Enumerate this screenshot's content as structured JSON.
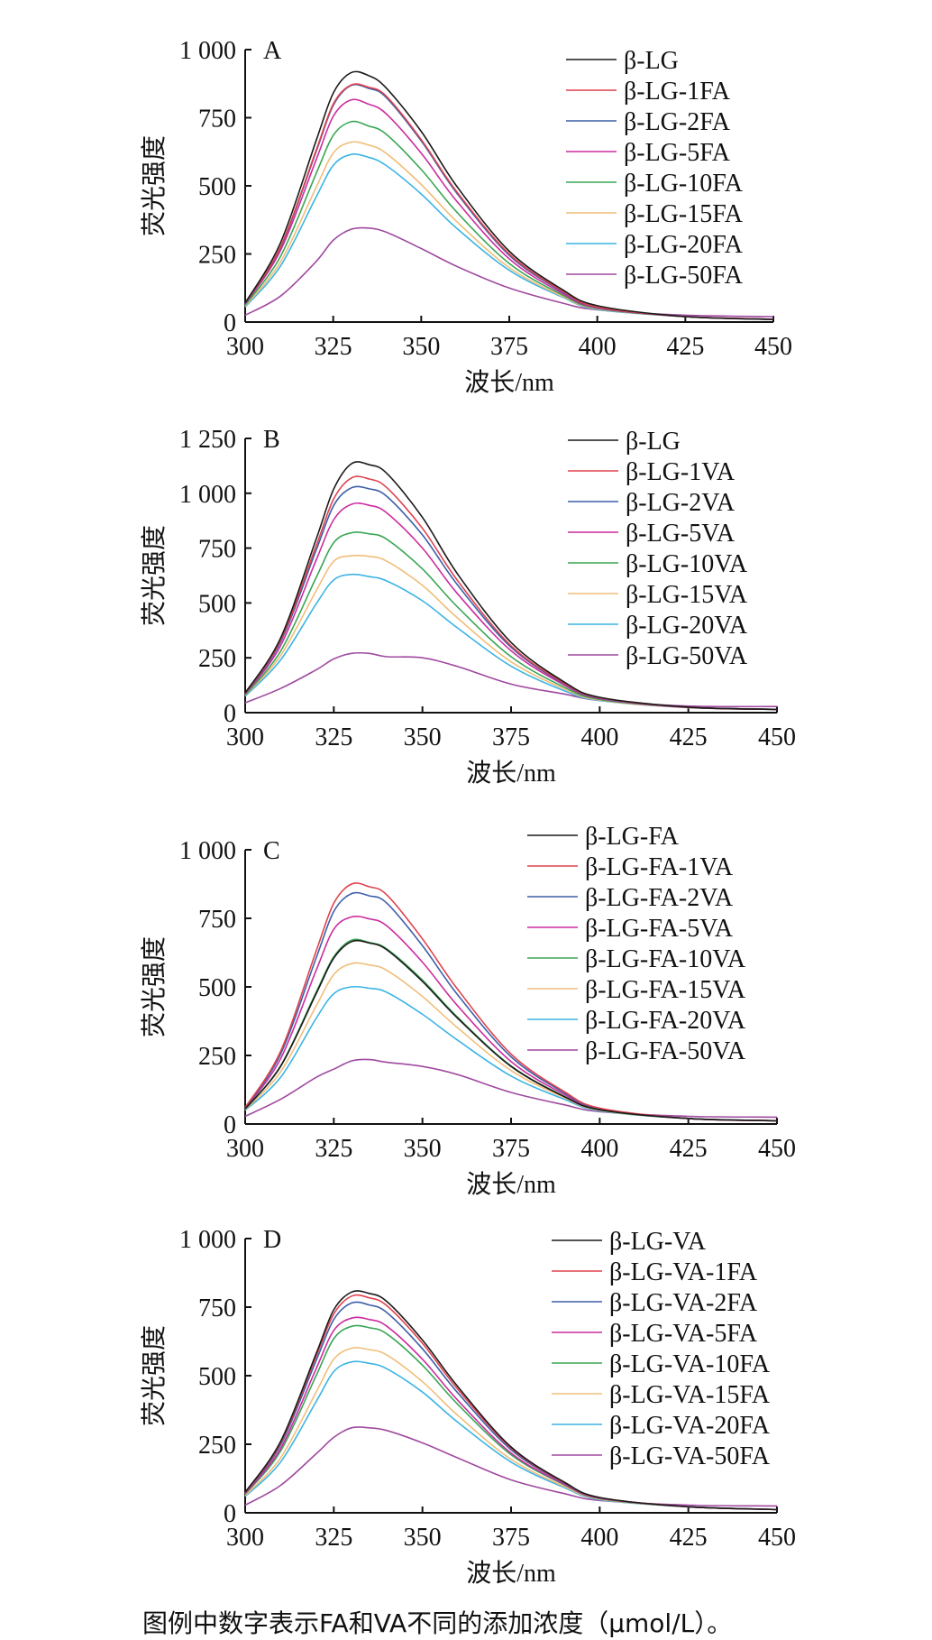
{
  "caption": "图例中数字表示FA和VA不同的添加浓度（μmol/L）。",
  "series_colors": [
    "#1a1a1a",
    "#e0424e",
    "#3d5fa8",
    "#cc2c9e",
    "#3aa655",
    "#f0be7a",
    "#3cb4e4",
    "#a04aa0"
  ],
  "chart_data": [
    {
      "type": "line",
      "panel_label": "A",
      "xlabel": "波长/nm",
      "ylabel": "荧光强度",
      "xlim": [
        300,
        450
      ],
      "ylim": [
        0,
        1000
      ],
      "xticks": [
        300,
        325,
        350,
        375,
        400,
        425,
        450
      ],
      "xtick_labels": [
        "300",
        "325",
        "350",
        "375",
        "400",
        "425",
        "450"
      ],
      "yticks": [
        0,
        250,
        500,
        750,
        1000
      ],
      "ytick_labels": [
        "0",
        "250",
        "500",
        "750",
        "1 000"
      ],
      "x": [
        300,
        310,
        320,
        325,
        330,
        335,
        340,
        350,
        360,
        375,
        390,
        400,
        425,
        450
      ],
      "series": [
        {
          "name": "β-LG",
          "values": [
            70,
            290,
            660,
            840,
            915,
            905,
            860,
            700,
            500,
            260,
            120,
            60,
            20,
            10
          ]
        },
        {
          "name": "β-LG-1FA",
          "values": [
            70,
            275,
            625,
            800,
            870,
            862,
            830,
            670,
            480,
            250,
            115,
            55,
            20,
            10
          ]
        },
        {
          "name": "β-LG-2FA",
          "values": [
            68,
            272,
            620,
            795,
            868,
            858,
            825,
            665,
            475,
            245,
            112,
            54,
            20,
            10
          ]
        },
        {
          "name": "β-LG-5FA",
          "values": [
            66,
            262,
            590,
            755,
            815,
            800,
            765,
            620,
            445,
            232,
            106,
            52,
            20,
            10
          ]
        },
        {
          "name": "β-LG-10FA",
          "values": [
            62,
            240,
            540,
            685,
            735,
            720,
            690,
            560,
            405,
            215,
            100,
            50,
            20,
            10
          ]
        },
        {
          "name": "β-LG-15FA",
          "values": [
            58,
            220,
            490,
            620,
            660,
            650,
            620,
            505,
            370,
            200,
            95,
            48,
            20,
            10
          ]
        },
        {
          "name": "β-LG-20FA",
          "values": [
            55,
            205,
            455,
            575,
            615,
            605,
            575,
            470,
            345,
            190,
            92,
            46,
            20,
            10
          ]
        },
        {
          "name": "β-LG-50FA",
          "values": [
            25,
            95,
            220,
            300,
            340,
            345,
            330,
            270,
            205,
            125,
            70,
            45,
            25,
            20
          ]
        }
      ]
    },
    {
      "type": "line",
      "panel_label": "B",
      "xlabel": "波长/nm",
      "ylabel": "荧光强度",
      "xlim": [
        300,
        450
      ],
      "ylim": [
        0,
        1250
      ],
      "xticks": [
        300,
        325,
        350,
        375,
        400,
        425,
        450
      ],
      "xtick_labels": [
        "300",
        "325",
        "350",
        "375",
        "400",
        "425",
        "450"
      ],
      "yticks": [
        0,
        250,
        500,
        750,
        1000,
        1250
      ],
      "ytick_labels": [
        "0",
        "250",
        "500",
        "750",
        "1 000",
        "1 250"
      ],
      "x": [
        300,
        310,
        320,
        325,
        330,
        335,
        340,
        350,
        360,
        375,
        390,
        400,
        425,
        450
      ],
      "series": [
        {
          "name": "β-LG",
          "values": [
            90,
            340,
            790,
            1020,
            1135,
            1130,
            1090,
            890,
            630,
            320,
            140,
            70,
            25,
            15
          ]
        },
        {
          "name": "β-LG-1VA",
          "values": [
            88,
            330,
            760,
            975,
            1070,
            1065,
            1025,
            840,
            600,
            305,
            135,
            68,
            25,
            15
          ]
        },
        {
          "name": "β-LG-2VA",
          "values": [
            86,
            322,
            740,
            945,
            1025,
            1020,
            985,
            810,
            580,
            298,
            132,
            66,
            25,
            15
          ]
        },
        {
          "name": "β-LG-5VA",
          "values": [
            84,
            305,
            695,
            880,
            950,
            945,
            910,
            750,
            540,
            282,
            126,
            64,
            24,
            15
          ]
        },
        {
          "name": "β-LG-10VA",
          "values": [
            80,
            280,
            615,
            775,
            820,
            815,
            790,
            655,
            480,
            255,
            116,
            60,
            24,
            15
          ]
        },
        {
          "name": "β-LG-15VA",
          "values": [
            78,
            260,
            555,
            690,
            715,
            712,
            690,
            580,
            430,
            232,
            108,
            57,
            23,
            15
          ]
        },
        {
          "name": "β-LG-20VA",
          "values": [
            75,
            240,
            495,
            605,
            630,
            620,
            600,
            510,
            385,
            212,
            100,
            55,
            23,
            15
          ]
        },
        {
          "name": "β-LG-50VA",
          "values": [
            45,
            110,
            195,
            245,
            270,
            270,
            255,
            250,
            210,
            130,
            85,
            55,
            30,
            28
          ]
        }
      ]
    },
    {
      "type": "line",
      "panel_label": "C",
      "xlabel": "波长/nm",
      "ylabel": "荧光强度",
      "xlim": [
        300,
        450
      ],
      "ylim": [
        0,
        1000
      ],
      "xticks": [
        300,
        325,
        350,
        375,
        400,
        425,
        450
      ],
      "xtick_labels": [
        "300",
        "325",
        "350",
        "375",
        "400",
        "425",
        "450"
      ],
      "yticks": [
        0,
        250,
        500,
        750,
        1000
      ],
      "ytick_labels": [
        "0",
        "250",
        "500",
        "750",
        "1 000"
      ],
      "x": [
        300,
        310,
        320,
        325,
        330,
        335,
        340,
        350,
        360,
        375,
        390,
        400,
        425,
        450
      ],
      "series": [
        {
          "name": "β-LG-FA",
          "values": [
            55,
            210,
            475,
            605,
            665,
            660,
            635,
            520,
            385,
            210,
            100,
            52,
            20,
            12
          ]
        },
        {
          "name": "β-LG-FA-1VA",
          "values": [
            60,
            265,
            630,
            805,
            875,
            865,
            835,
            675,
            490,
            255,
            118,
            58,
            20,
            12
          ]
        },
        {
          "name": "β-LG-FA-2VA",
          "values": [
            58,
            255,
            605,
            775,
            840,
            832,
            805,
            650,
            470,
            245,
            114,
            56,
            20,
            12
          ]
        },
        {
          "name": "β-LG-FA-5VA",
          "values": [
            57,
            238,
            560,
            710,
            755,
            748,
            722,
            590,
            430,
            228,
            108,
            54,
            20,
            12
          ]
        },
        {
          "name": "β-LG-FA-10VA",
          "values": [
            55,
            212,
            480,
            610,
            670,
            662,
            638,
            525,
            388,
            212,
            101,
            52,
            20,
            12
          ]
        },
        {
          "name": "β-LG-FA-15VA",
          "values": [
            52,
            190,
            430,
            545,
            585,
            580,
            560,
            465,
            350,
            195,
            96,
            50,
            20,
            12
          ]
        },
        {
          "name": "β-LG-FA-20VA",
          "values": [
            50,
            170,
            385,
            475,
            500,
            495,
            480,
            400,
            305,
            175,
            90,
            48,
            20,
            12
          ]
        },
        {
          "name": "β-LG-FA-50VA",
          "values": [
            28,
            90,
            170,
            200,
            230,
            235,
            225,
            210,
            180,
            115,
            70,
            45,
            28,
            25
          ]
        }
      ]
    },
    {
      "type": "line",
      "panel_label": "D",
      "xlabel": "波长/nm",
      "ylabel": "荧光强度",
      "xlim": [
        300,
        450
      ],
      "ylim": [
        0,
        1000
      ],
      "xticks": [
        300,
        325,
        350,
        375,
        400,
        425,
        450
      ],
      "xtick_labels": [
        "300",
        "325",
        "350",
        "375",
        "400",
        "425",
        "450"
      ],
      "yticks": [
        0,
        250,
        500,
        750,
        1000
      ],
      "ytick_labels": [
        "0",
        "250",
        "500",
        "750",
        "1 000"
      ],
      "x": [
        300,
        310,
        320,
        325,
        330,
        335,
        340,
        350,
        360,
        375,
        390,
        400,
        425,
        450
      ],
      "series": [
        {
          "name": "β-LG-VA",
          "values": [
            75,
            260,
            580,
            740,
            805,
            800,
            770,
            630,
            460,
            240,
            112,
            56,
            22,
            12
          ]
        },
        {
          "name": "β-LG-VA-1FA",
          "values": [
            73,
            255,
            570,
            725,
            790,
            784,
            755,
            618,
            450,
            236,
            110,
            55,
            22,
            12
          ]
        },
        {
          "name": "β-LG-VA-2FA",
          "values": [
            72,
            248,
            555,
            705,
            765,
            758,
            730,
            598,
            437,
            230,
            108,
            54,
            22,
            12
          ]
        },
        {
          "name": "β-LG-VA-5FA",
          "values": [
            70,
            235,
            525,
            665,
            710,
            705,
            680,
            560,
            410,
            218,
            104,
            53,
            22,
            12
          ]
        },
        {
          "name": "β-LG-VA-10FA",
          "values": [
            68,
            225,
            500,
            635,
            680,
            675,
            652,
            538,
            395,
            212,
            102,
            52,
            22,
            12
          ]
        },
        {
          "name": "β-LG-VA-15FA",
          "values": [
            63,
            200,
            440,
            560,
            600,
            595,
            575,
            478,
            355,
            195,
            96,
            50,
            22,
            12
          ]
        },
        {
          "name": "β-LG-VA-20FA",
          "values": [
            60,
            185,
            405,
            515,
            550,
            545,
            525,
            440,
            330,
            185,
            92,
            48,
            22,
            12
          ]
        },
        {
          "name": "β-LG-VA-50FA",
          "values": [
            28,
            100,
            215,
            275,
            310,
            310,
            300,
            255,
            200,
            120,
            70,
            45,
            28,
            25
          ]
        }
      ]
    }
  ]
}
